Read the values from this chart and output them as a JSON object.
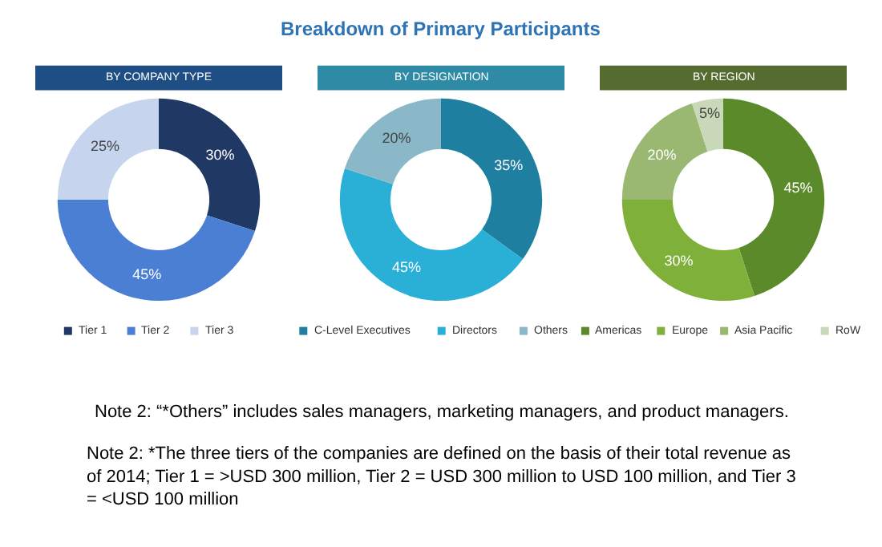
{
  "chart_data": [
    {
      "type": "other",
      "title": "Breakdown of Primary Participants",
      "annotations": [
        "Note 2: “*Others” includes sales managers, marketing managers, and product managers.",
        "Note 2: *The three tiers of the companies are defined on the basis of their total revenue as of 2014; Tier 1 = >USD 300 million, Tier 2 = USD 300 million to USD 100 million, and Tier 3 = <USD 100 million"
      ]
    },
    {
      "type": "donut",
      "title": "BY COMPANY TYPE",
      "categories": [
        "Tier 1",
        "Tier 2",
        "Tier 3"
      ],
      "values": [
        30,
        45,
        25
      ],
      "value_labels": [
        "30%",
        "45%",
        "25%"
      ],
      "colors": [
        "#1f3864",
        "#4a7fd4",
        "#c6d4ee"
      ],
      "legend": "bottom"
    },
    {
      "type": "donut",
      "title": "BY DESIGNATION",
      "categories": [
        "C-Level Executives",
        "Directors",
        "Others"
      ],
      "values": [
        35,
        45,
        20
      ],
      "value_labels": [
        "35%",
        "45%",
        "20%"
      ],
      "colors": [
        "#1f7fa0",
        "#2ab0d6",
        "#8bb8c8"
      ],
      "legend": "bottom"
    },
    {
      "type": "donut",
      "title": "BY REGION",
      "categories": [
        "Americas",
        "Europe",
        "Asia Pacific",
        "RoW"
      ],
      "values": [
        45,
        30,
        20,
        5
      ],
      "value_labels": [
        "45%",
        "30%",
        "20%",
        "5%"
      ],
      "colors": [
        "#5a8a2a",
        "#7fb03a",
        "#9ab872",
        "#c9d8b8"
      ],
      "legend": "bottom"
    }
  ]
}
